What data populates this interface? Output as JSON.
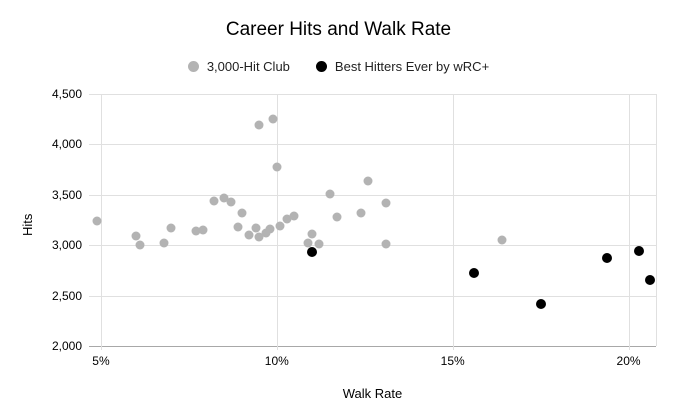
{
  "chart_data": {
    "type": "scatter",
    "title": "Career Hits and Walk Rate",
    "xlabel": "Walk Rate",
    "ylabel": "Hits",
    "legend_position": "top",
    "grid": true,
    "xlim": [
      4.66,
      20.78
    ],
    "ylim": [
      2000,
      4500
    ],
    "x_ticks": [
      {
        "value": 5,
        "label": "5%"
      },
      {
        "value": 10,
        "label": "10%"
      },
      {
        "value": 15,
        "label": "15%"
      },
      {
        "value": 20,
        "label": "20%"
      }
    ],
    "y_ticks": [
      {
        "value": 2000,
        "label": "2,000"
      },
      {
        "value": 2500,
        "label": "2,500"
      },
      {
        "value": 3000,
        "label": "3,000"
      },
      {
        "value": 3500,
        "label": "3,500"
      },
      {
        "value": 4000,
        "label": "4,000"
      },
      {
        "value": 4500,
        "label": "4,500"
      }
    ],
    "series": [
      {
        "name": "3,000-Hit Club",
        "color": "#b3b3b3",
        "dot_size": 9,
        "points": [
          {
            "x": 4.9,
            "y": 3243
          },
          {
            "x": 6.0,
            "y": 3089
          },
          {
            "x": 6.1,
            "y": 3000
          },
          {
            "x": 6.8,
            "y": 3023
          },
          {
            "x": 7.0,
            "y": 3167
          },
          {
            "x": 7.7,
            "y": 3141
          },
          {
            "x": 7.9,
            "y": 3149
          },
          {
            "x": 8.2,
            "y": 3435
          },
          {
            "x": 8.5,
            "y": 3472
          },
          {
            "x": 8.7,
            "y": 3425
          },
          {
            "x": 8.9,
            "y": 3184
          },
          {
            "x": 9.0,
            "y": 3324
          },
          {
            "x": 9.2,
            "y": 3103
          },
          {
            "x": 9.4,
            "y": 3168
          },
          {
            "x": 9.5,
            "y": 3086
          },
          {
            "x": 9.5,
            "y": 4189
          },
          {
            "x": 9.7,
            "y": 3124
          },
          {
            "x": 9.8,
            "y": 3161
          },
          {
            "x": 9.9,
            "y": 4256
          },
          {
            "x": 10.0,
            "y": 3771
          },
          {
            "x": 10.1,
            "y": 3193
          },
          {
            "x": 10.3,
            "y": 3262
          },
          {
            "x": 10.5,
            "y": 3292
          },
          {
            "x": 10.9,
            "y": 3024
          },
          {
            "x": 11.0,
            "y": 3115
          },
          {
            "x": 11.2,
            "y": 3014
          },
          {
            "x": 11.5,
            "y": 3512
          },
          {
            "x": 11.7,
            "y": 3284
          },
          {
            "x": 12.4,
            "y": 3321
          },
          {
            "x": 12.6,
            "y": 3632
          },
          {
            "x": 13.1,
            "y": 3421
          },
          {
            "x": 13.1,
            "y": 3011
          },
          {
            "x": 16.4,
            "y": 3056
          }
        ]
      },
      {
        "name": "Best Hitters Ever by wRC+",
        "color": "#000000",
        "dot_size": 10,
        "points": [
          {
            "x": 11.0,
            "y": 2932
          },
          {
            "x": 15.6,
            "y": 2722
          },
          {
            "x": 17.5,
            "y": 2417
          },
          {
            "x": 19.4,
            "y": 2877
          },
          {
            "x": 20.3,
            "y": 2941
          },
          {
            "x": 20.6,
            "y": 2657
          }
        ]
      }
    ]
  }
}
